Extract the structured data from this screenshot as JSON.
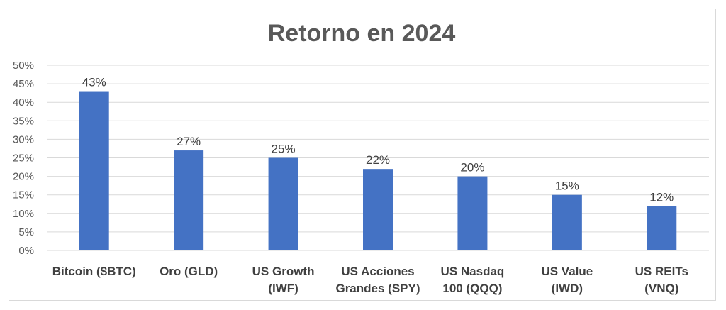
{
  "chart_data": {
    "type": "bar",
    "title": "Retorno en 2024",
    "xlabel": "",
    "ylabel": "",
    "categories": [
      [
        "Bitcoin ($BTC)"
      ],
      [
        "Oro (GLD)"
      ],
      [
        "US Growth",
        "(IWF)"
      ],
      [
        "US Acciones",
        "Grandes (SPY)"
      ],
      [
        "US Nasdaq",
        "100 (QQQ)"
      ],
      [
        "US Value",
        "(IWD)"
      ],
      [
        "US REITs",
        "(VNQ)"
      ]
    ],
    "values": [
      43,
      27,
      25,
      22,
      20,
      15,
      12
    ],
    "data_labels": [
      "43%",
      "27%",
      "25%",
      "22%",
      "20%",
      "15%",
      "12%"
    ],
    "ylim": [
      0,
      50
    ],
    "y_ticks": [
      "0%",
      "5%",
      "10%",
      "15%",
      "20%",
      "25%",
      "30%",
      "35%",
      "40%",
      "45%",
      "50%"
    ],
    "grid": true,
    "legend": "none",
    "bar_color": "#4472c4",
    "grid_color": "#d9d9d9"
  }
}
